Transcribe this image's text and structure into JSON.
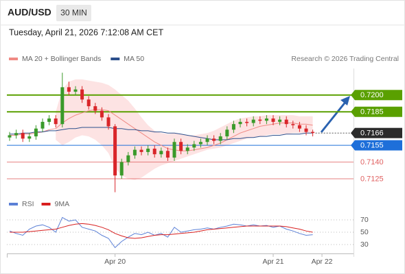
{
  "chart_data": {
    "type": "candlestick",
    "title": "AUD/USD",
    "timeframe": "30 MIN",
    "subtitle": "Tuesday, April 21, 2026 7:12:08 AM CET",
    "credit": "Research © 2026 Trading Central",
    "ylim": [
      0.711,
      0.7225
    ],
    "xticks": [
      {
        "value": 16,
        "label": "Apr 20"
      },
      {
        "value": 40,
        "label": "Apr 21"
      },
      {
        "value": 47.4,
        "label": "Apr 22"
      }
    ],
    "up_color": "#3a9a2a",
    "down_color": "#d9262a",
    "open": [
      0.7162,
      0.7164,
      0.7166,
      0.7161,
      0.7163,
      0.717,
      0.7176,
      0.7179,
      0.7174,
      0.7207,
      0.7203,
      0.7205,
      0.7196,
      0.719,
      0.7186,
      0.718,
      0.7172,
      0.7128,
      0.714,
      0.7146,
      0.7151,
      0.7149,
      0.7152,
      0.7147,
      0.715,
      0.7144,
      0.7158,
      0.715,
      0.7153,
      0.7156,
      0.7158,
      0.7161,
      0.7159,
      0.7163,
      0.7169,
      0.7174,
      0.7176,
      0.7175,
      0.7178,
      0.7177,
      0.7179,
      0.7176,
      0.7178,
      0.7174,
      0.7173,
      0.717,
      0.7167
    ],
    "high": [
      0.7167,
      0.7169,
      0.7169,
      0.7166,
      0.7173,
      0.7179,
      0.7182,
      0.7182,
      0.722,
      0.7212,
      0.7208,
      0.7208,
      0.7199,
      0.7193,
      0.7189,
      0.7183,
      0.7174,
      0.7143,
      0.7149,
      0.7154,
      0.7154,
      0.7155,
      0.7155,
      0.7153,
      0.7153,
      0.7161,
      0.7161,
      0.7156,
      0.7159,
      0.7161,
      0.7164,
      0.7164,
      0.7166,
      0.7172,
      0.7177,
      0.7179,
      0.7179,
      0.7181,
      0.7181,
      0.7182,
      0.7182,
      0.7181,
      0.7181,
      0.7177,
      0.7176,
      0.7173,
      0.7169
    ],
    "low": [
      0.7159,
      0.7161,
      0.7158,
      0.7158,
      0.716,
      0.7167,
      0.7173,
      0.7171,
      0.7171,
      0.72,
      0.72,
      0.7193,
      0.7187,
      0.7183,
      0.7177,
      0.7169,
      0.7113,
      0.7125,
      0.7137,
      0.7143,
      0.7146,
      0.7146,
      0.7144,
      0.7144,
      0.7141,
      0.7141,
      0.7147,
      0.7147,
      0.715,
      0.7153,
      0.7155,
      0.7156,
      0.7156,
      0.716,
      0.7166,
      0.7171,
      0.7172,
      0.7172,
      0.7174,
      0.7174,
      0.7173,
      0.7173,
      0.7171,
      0.717,
      0.7167,
      0.7164,
      0.7163
    ],
    "close": [
      0.7164,
      0.7166,
      0.7161,
      0.7163,
      0.717,
      0.7176,
      0.7179,
      0.7174,
      0.7207,
      0.7203,
      0.7205,
      0.7196,
      0.719,
      0.7186,
      0.718,
      0.7172,
      0.7128,
      0.714,
      0.7146,
      0.7151,
      0.7149,
      0.7152,
      0.7147,
      0.715,
      0.7144,
      0.7158,
      0.715,
      0.7153,
      0.7156,
      0.7158,
      0.7161,
      0.7159,
      0.7163,
      0.7169,
      0.7174,
      0.7176,
      0.7175,
      0.7178,
      0.7177,
      0.7179,
      0.7176,
      0.7178,
      0.7174,
      0.7173,
      0.717,
      0.7167,
      0.7166
    ],
    "overlays": [
      {
        "name": "MA 20 + Bollinger Bands",
        "color": "#f08a84",
        "band_color": "#fcd9d9",
        "values": [
          0.7164,
          0.7164,
          0.7165,
          0.7165,
          0.7166,
          0.7167,
          0.7169,
          0.717,
          0.7175,
          0.7179,
          0.7182,
          0.7184,
          0.7186,
          0.7187,
          0.7187,
          0.7186,
          0.7182,
          0.7178,
          0.7174,
          0.717,
          0.7166,
          0.7162,
          0.7158,
          0.7155,
          0.7152,
          0.7151,
          0.715,
          0.715,
          0.7151,
          0.7152,
          0.7153,
          0.7155,
          0.7157,
          0.716,
          0.7163,
          0.7166,
          0.7168,
          0.717,
          0.7172,
          0.7173,
          0.7174,
          0.7175,
          0.7175,
          0.7175,
          0.7174,
          0.7174,
          0.7173
        ],
        "upper": [
          null,
          null,
          null,
          null,
          null,
          null,
          null,
          0.7185,
          0.7205,
          0.7212,
          0.7214,
          0.7214,
          0.7213,
          0.7212,
          0.7211,
          0.7209,
          0.7205,
          0.72,
          0.7195,
          0.7188,
          0.718,
          0.7173,
          0.7168,
          0.7166,
          0.7165,
          0.7166,
          0.7165,
          0.7164,
          0.7164,
          0.7165,
          0.7166,
          0.7168,
          0.7171,
          0.7174,
          0.7177,
          0.7179,
          0.718,
          0.7181,
          0.7181,
          0.7182,
          0.7182,
          0.7182,
          0.7182,
          0.7182,
          0.7181,
          0.7181,
          0.7181
        ],
        "lower": [
          null,
          null,
          null,
          null,
          null,
          null,
          null,
          0.716,
          0.7155,
          0.7158,
          0.7162,
          0.7164,
          0.7163,
          0.716,
          0.7155,
          0.7148,
          0.7135,
          0.7128,
          0.7125,
          0.7124,
          0.7126,
          0.713,
          0.7134,
          0.7137,
          0.7139,
          0.7141,
          0.7143,
          0.7145,
          0.7147,
          0.7149,
          0.7151,
          0.7152,
          0.7153,
          0.7155,
          0.7157,
          0.7159,
          0.7161,
          0.7162,
          0.7163,
          0.7164,
          0.7165,
          0.7165,
          0.7165,
          0.7166,
          0.7166,
          0.7166,
          0.7166
        ]
      },
      {
        "name": "MA 50",
        "color": "#2c4f8c",
        "values": [
          0.7165,
          0.7165,
          0.7166,
          0.7166,
          0.7167,
          0.7167,
          0.7168,
          0.7168,
          0.7169,
          0.717,
          0.717,
          0.7171,
          0.7171,
          0.7171,
          0.7171,
          0.7171,
          0.717,
          0.717,
          0.7169,
          0.7169,
          0.7168,
          0.7168,
          0.7167,
          0.7167,
          0.7166,
          0.7166,
          0.7165,
          0.7164,
          0.7163,
          0.7162,
          0.7161,
          0.716,
          0.716,
          0.716,
          0.7161,
          0.7161,
          0.7162,
          0.7162,
          0.7163,
          0.7163,
          0.7164,
          0.7164,
          0.7165,
          0.7165,
          0.7165,
          0.7166,
          0.7166
        ]
      }
    ],
    "levels": [
      {
        "value": 0.72,
        "label": "0.7200",
        "color": "#5aa000",
        "boxed": true,
        "dotted": false
      },
      {
        "value": 0.7185,
        "label": "0.7185",
        "color": "#5aa000",
        "boxed": true,
        "dotted": false
      },
      {
        "value": 0.7166,
        "label": "0.7166",
        "color": "#2b2b2b",
        "boxed": true,
        "dotted": true
      },
      {
        "value": 0.7155,
        "label": "0.7155",
        "color": "#1e6fd9",
        "boxed": true,
        "dotted": false
      },
      {
        "value": 0.714,
        "label": "0.7140",
        "color": "#e06060",
        "boxed": false,
        "dotted": false
      },
      {
        "value": 0.7125,
        "label": "0.7125",
        "color": "#e06060",
        "boxed": false,
        "dotted": false
      }
    ],
    "indicator": {
      "ylim": [
        20,
        80
      ],
      "yticks": [
        30,
        50,
        70
      ],
      "series": [
        {
          "name": "RSI",
          "color": "#5b80d6",
          "values": [
            52,
            48,
            45,
            55,
            60,
            62,
            58,
            50,
            74,
            68,
            70,
            58,
            55,
            52,
            45,
            40,
            25,
            35,
            42,
            48,
            46,
            50,
            45,
            48,
            42,
            58,
            50,
            52,
            54,
            55,
            57,
            55,
            58,
            60,
            63,
            62,
            60,
            62,
            60,
            61,
            58,
            60,
            55,
            52,
            48,
            45,
            46
          ]
        },
        {
          "name": "9MA",
          "color": "#d81e1e",
          "values": [
            50,
            50,
            50,
            51,
            52,
            53,
            54,
            55,
            58,
            61,
            63,
            64,
            63,
            61,
            58,
            54,
            48,
            44,
            41,
            40,
            41,
            43,
            45,
            46,
            46,
            47,
            48,
            49,
            50,
            52,
            54,
            55,
            56,
            57,
            58,
            59,
            60,
            60,
            60,
            60,
            60,
            60,
            59,
            57,
            55,
            52,
            50
          ]
        }
      ]
    }
  }
}
